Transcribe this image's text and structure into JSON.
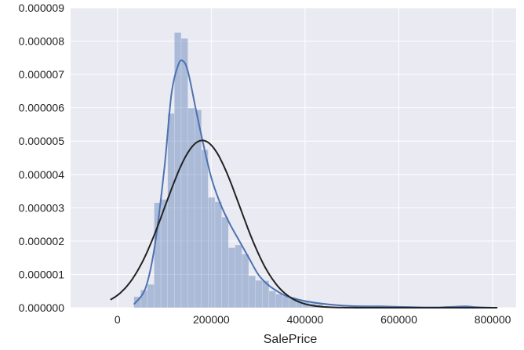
{
  "chart_data": {
    "type": "bar",
    "xlabel": "SalePrice",
    "ylabel": "",
    "xlim": [
      -100000,
      850000
    ],
    "ylim": [
      0,
      9e-06
    ],
    "grid": true,
    "background_color": "#eaeaf2",
    "grid_color": "#ffffff",
    "x_ticks": [
      0,
      200000,
      400000,
      600000,
      800000
    ],
    "x_tick_labels": [
      "0",
      "200000",
      "400000",
      "600000",
      "800000"
    ],
    "y_ticks": [
      0,
      1e-06,
      2e-06,
      3e-06,
      4e-06,
      5e-06,
      6e-06,
      7e-06,
      8e-06,
      9e-06
    ],
    "y_tick_labels": [
      "0.000000",
      "0.000001",
      "0.000002",
      "0.000003",
      "0.000004",
      "0.000005",
      "0.000006",
      "0.000007",
      "0.000008",
      "0.000009"
    ],
    "histogram": {
      "color": "#4c72b0",
      "opacity": 0.4,
      "bin_width": 14400,
      "bins_start": 34900,
      "values": [
        3.3e-07,
        5.3e-07,
        7e-07,
        3.15e-06,
        3.25e-06,
        5.83e-06,
        8.26e-06,
        8.08e-06,
        5.99e-06,
        5.94e-06,
        4.74e-06,
        3.31e-06,
        3.18e-06,
        2.72e-06,
        1.8e-06,
        1.88e-06,
        1.61e-06,
        9.6e-07,
        8.2e-07,
        8.1e-07,
        5e-07,
        4.1e-07,
        3.5e-07,
        3e-07,
        2.4e-07,
        1.8e-07,
        1.3e-07,
        1e-07,
        5e-08,
        3e-08,
        0,
        0,
        6e-08,
        2e-08,
        0,
        0,
        0,
        2e-08,
        2e-08,
        0,
        0,
        0,
        0,
        0,
        0,
        0,
        5e-08,
        2e-08,
        0,
        0
      ]
    },
    "series": [
      {
        "type": "line",
        "color": "#4c72b0",
        "x": [
          35000,
          60000,
          80000,
          100000,
          115000,
          130000,
          140000,
          150000,
          165000,
          180000,
          200000,
          220000,
          240000,
          260000,
          280000,
          300000,
          320000,
          340000,
          360000,
          400000,
          450000,
          500000,
          560000,
          620000,
          680000,
          740000,
          760000,
          800000
        ],
        "y": [
          1e-07,
          6e-07,
          1.9e-06,
          4.2e-06,
          6.4e-06,
          7.3e-06,
          7.4e-06,
          7.1e-06,
          6.1e-06,
          5.1e-06,
          3.9e-06,
          3.1e-06,
          2.5e-06,
          2e-06,
          1.5e-06,
          1e-06,
          7e-07,
          5e-07,
          3.5e-07,
          2e-07,
          1e-07,
          5e-08,
          4e-08,
          2e-08,
          1e-08,
          4e-08,
          2e-08,
          0
        ]
      },
      {
        "type": "line",
        "color": "#222222",
        "distribution": "normal",
        "mean": 180921,
        "std": 79443,
        "x_range": [
          -15000,
          810000
        ]
      }
    ]
  }
}
